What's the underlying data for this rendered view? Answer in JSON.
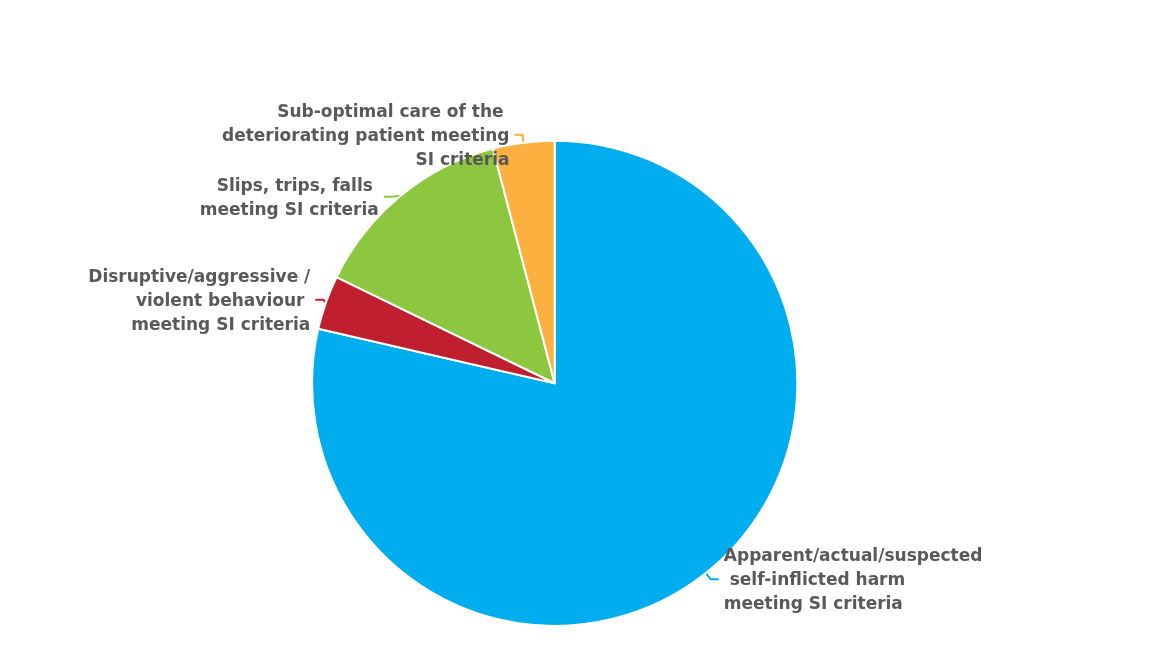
{
  "chart_data": {
    "type": "pie",
    "categories": [
      "Apparent/actual/suspected self-inflicted harm meeting SI criteria",
      "Disruptive/aggressive /violent behaviour meeting SI criteria",
      "Slips, trips, falls meeting SI criteria",
      "Sub-optimal care of the deteriorating patient meeting SI criteria"
    ],
    "values": [
      78.6,
      3.6,
      13.7,
      4.1
    ],
    "colors": [
      "#00adef",
      "#c01f2f",
      "#8dc63f",
      "#fbb040"
    ],
    "legend": false
  }
}
